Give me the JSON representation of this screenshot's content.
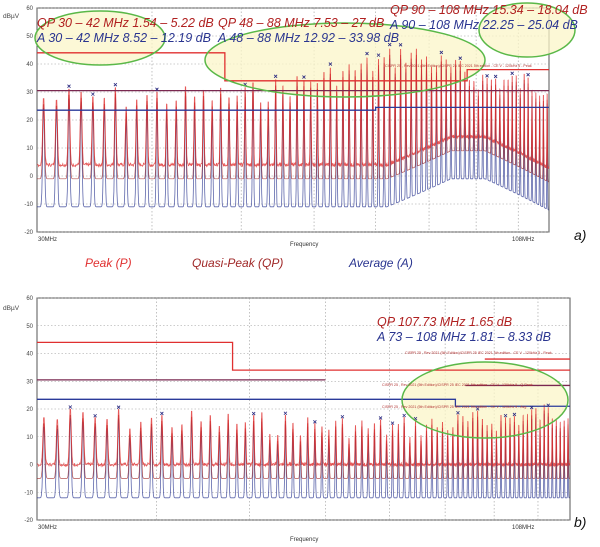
{
  "colors": {
    "peak": "#e03030",
    "quasi_peak": "#a02828",
    "average": "#2a3590",
    "qp_limit": "#7a2850",
    "avg_limit": "#2a3a9a",
    "highlight_fill": "#fbf6c8",
    "highlight_stroke": "#5ab848",
    "grid": "#999999"
  },
  "legend": {
    "peak": "Peak (P)",
    "quasi_peak": "Quasi-Peak (QP)",
    "average": "Average (A)"
  },
  "chart_data": [
    {
      "type": "line",
      "panel_label": "a)",
      "ylabel": "dBµV",
      "xlabel": "Frequency",
      "x_tick_labels": [
        "30MHz",
        "108MHz"
      ],
      "xlim_mhz": [
        30,
        108
      ],
      "x_scale": "log",
      "ylim": [
        -20,
        60
      ],
      "y_ticks": [
        60,
        50,
        40,
        30,
        20,
        10,
        0,
        -10,
        -20
      ],
      "grid": true,
      "limit_lines": [
        {
          "name": "Class limit (upper)",
          "segments": [
            {
              "from_mhz": 30,
              "to_mhz": 48,
              "value": 44
            },
            {
              "from_mhz": 48,
              "to_mhz": 88,
              "value": 34
            },
            {
              "from_mhz": 88,
              "to_mhz": 108,
              "value": 38
            }
          ]
        },
        {
          "name": "QP limit",
          "segments": [
            {
              "from_mhz": 30,
              "to_mhz": 70,
              "value": 30.5
            },
            {
              "from_mhz": 70,
              "to_mhz": 108,
              "value": 30.5
            }
          ]
        },
        {
          "name": "Average limit",
          "segments": [
            {
              "from_mhz": 30,
              "to_mhz": 70,
              "value": 23.5
            },
            {
              "from_mhz": 70,
              "to_mhz": 108,
              "value": 24.5
            }
          ]
        }
      ],
      "cispr_note": "CISPR 25 , Rev 2021 (5th Edition)/CISPR 25 IEC 2021 5th edition - CE V - 120kHz 5 - Peak",
      "harmonics": {
        "start_mhz": 30.5,
        "spacing_mhz": 1.0,
        "peak_envelope": [
          {
            "mhz": 30,
            "db": 33
          },
          {
            "mhz": 50,
            "db": 34
          },
          {
            "mhz": 70,
            "db": 46
          },
          {
            "mhz": 76,
            "db": 50
          },
          {
            "mhz": 90,
            "db": 40
          },
          {
            "mhz": 108,
            "db": 38
          }
        ],
        "floor_peak_db": 4,
        "floor_qp_db": -1,
        "floor_avg_db": -11,
        "floor_rise_mhz": 72,
        "floor_rise_db": 10
      },
      "annotations": [
        {
          "id": "qp_30_42",
          "text": "QP 30 – 42 MHz 1.54 – 5.22 dB",
          "series": "quasi_peak"
        },
        {
          "id": "a_30_42",
          "text": "A 30 – 42 MHz 8.52 – 12.19 dB",
          "series": "average"
        },
        {
          "id": "qp_48_88",
          "text": "QP 48 – 88 MHz 7.53 – 27 dB",
          "series": "quasi_peak"
        },
        {
          "id": "a_48_88",
          "text": "A 48 – 88 MHz 12.92 – 33.98 dB",
          "series": "average"
        },
        {
          "id": "qp_90_108",
          "text": "QP 90 – 108 MHz 15.34 – 18.04 dB",
          "series": "quasi_peak"
        },
        {
          "id": "a_90_108",
          "text": "A 90 – 108 MHz 22.25 – 25.04 dB",
          "series": "average"
        }
      ]
    },
    {
      "type": "line",
      "panel_label": "b)",
      "ylabel": "dBµV",
      "xlabel": "Frequency",
      "x_tick_labels": [
        "30MHz",
        "108MHz"
      ],
      "xlim_mhz": [
        30,
        108
      ],
      "x_scale": "log",
      "ylim": [
        -20,
        60
      ],
      "y_ticks": [
        60,
        50,
        40,
        30,
        20,
        10,
        0,
        -10,
        -20
      ],
      "grid": true,
      "limit_lines": [
        {
          "name": "Class limit (upper)",
          "segments": [
            {
              "from_mhz": 30,
              "to_mhz": 48,
              "value": 44
            },
            {
              "from_mhz": 48,
              "to_mhz": 108,
              "value": 34
            }
          ]
        },
        {
          "name": "Upper limit 88-108",
          "segments": [
            {
              "from_mhz": 88,
              "to_mhz": 108,
              "value": 38
            }
          ]
        },
        {
          "name": "QP limit",
          "segments": [
            {
              "from_mhz": 30,
              "to_mhz": 60,
              "value": 30.5
            },
            {
              "from_mhz": 84,
              "to_mhz": 108,
              "value": 28.5
            }
          ]
        },
        {
          "name": "Average limit",
          "segments": [
            {
              "from_mhz": 30,
              "to_mhz": 82,
              "value": 23.5
            },
            {
              "from_mhz": 82,
              "to_mhz": 108,
              "value": 21
            }
          ]
        }
      ],
      "cispr_note": "CISPR 25 , Rev 2021 (5th Edition)/CISPR 25 IEC 2021 5th edition - CE V - 120kHz 5 - Peak",
      "cispr_note_qp": "CISPR 25 , Rev 2021 (5th Edition)/CISPR 25 IEC 2021 5th edition - CE V - 120kHz 5 - Q-Peak",
      "cispr_note_avg": "CISPR 25 , Rev 2021 (5th Edition)/CISPR 25 IEC 2021 5th edition - CE V - 120kHz 5 - Avg",
      "harmonics": {
        "start_mhz": 30.5,
        "spacing_mhz": 1.0,
        "peak_envelope": [
          {
            "mhz": 30,
            "db": 22
          },
          {
            "mhz": 50,
            "db": 20
          },
          {
            "mhz": 70,
            "db": 18
          },
          {
            "mhz": 90,
            "db": 21
          },
          {
            "mhz": 108,
            "db": 25
          }
        ],
        "floor_peak_db": 0,
        "floor_qp_db": -5,
        "floor_avg_db": -12,
        "floor_rise_mhz": 200,
        "floor_rise_db": 0
      },
      "annotations": [
        {
          "id": "qp_107",
          "text": "QP 107.73 MHz 1.65 dB",
          "series": "quasi_peak"
        },
        {
          "id": "a_73_108",
          "text": "A 73 – 108 MHz 1.81 – 8.33 dB",
          "series": "average"
        }
      ]
    }
  ]
}
